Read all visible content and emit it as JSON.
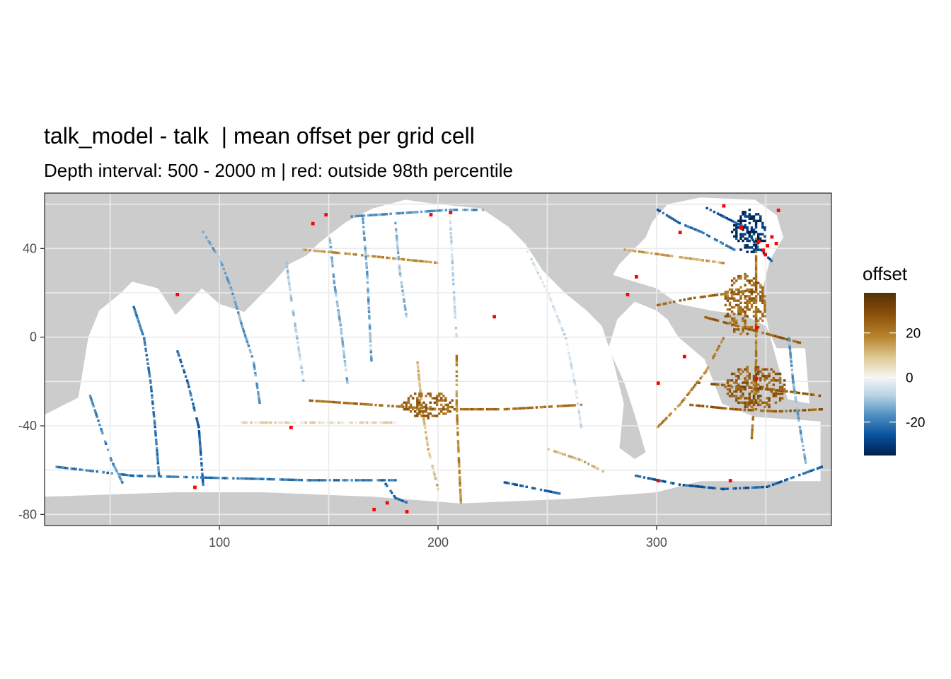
{
  "title": "talk_model - talk  | mean offset per grid cell",
  "subtitle": "Depth interval: 500 - 2000 m | red: outside 98th percentile",
  "chart_data": {
    "type": "heatmap",
    "xlim": [
      20,
      380
    ],
    "ylim": [
      -85,
      65
    ],
    "x_ticks": [
      {
        "value": 100,
        "label": "100"
      },
      {
        "value": 200,
        "label": "200"
      },
      {
        "value": 300,
        "label": "300"
      }
    ],
    "y_ticks": [
      {
        "value": 40,
        "label": "40"
      },
      {
        "value": 0,
        "label": "0"
      },
      {
        "value": -40,
        "label": "-40"
      },
      {
        "value": -80,
        "label": "-80"
      }
    ],
    "legend": {
      "title": "offset",
      "placement": "right",
      "range": [
        -35,
        38
      ],
      "ticks": [
        {
          "value": 20,
          "label": "20"
        },
        {
          "value": 0,
          "label": "0"
        },
        {
          "value": -20,
          "label": "-20"
        }
      ],
      "colors": [
        "#00204d",
        "#08519c",
        "#4f8fbf",
        "#b8d3e6",
        "#f5f5f5",
        "#e2cfa0",
        "#b8862f",
        "#8c510a",
        "#543005"
      ]
    },
    "land_color": "#cccccc",
    "ocean_color": "#ffffff",
    "outlier_color": "#ff0000",
    "tracks": [
      {
        "pts": [
          [
            92,
            48
          ],
          [
            100,
            35
          ],
          [
            105,
            22
          ],
          [
            110,
            5
          ],
          [
            115,
            -10
          ],
          [
            118,
            -30
          ]
        ],
        "value": -14
      },
      {
        "pts": [
          [
            60,
            15
          ],
          [
            65,
            0
          ],
          [
            68,
            -20
          ],
          [
            70,
            -40
          ],
          [
            72,
            -64
          ]
        ],
        "value": -20
      },
      {
        "pts": [
          [
            80,
            -5
          ],
          [
            85,
            -20
          ],
          [
            90,
            -40
          ],
          [
            92,
            -66
          ]
        ],
        "value": -22
      },
      {
        "pts": [
          [
            40,
            -25
          ],
          [
            45,
            -40
          ],
          [
            50,
            -55
          ],
          [
            55,
            -65
          ]
        ],
        "value": -18
      },
      {
        "pts": [
          [
            130,
            35
          ],
          [
            132,
            20
          ],
          [
            135,
            0
          ],
          [
            138,
            -20
          ]
        ],
        "value": -8
      },
      {
        "pts": [
          [
            150,
            45
          ],
          [
            152,
            25
          ],
          [
            155,
            5
          ],
          [
            158,
            -20
          ]
        ],
        "value": -12
      },
      {
        "pts": [
          [
            165,
            55
          ],
          [
            167,
            30
          ],
          [
            168,
            10
          ],
          [
            169,
            -10
          ]
        ],
        "value": -14
      },
      {
        "pts": [
          [
            180,
            52
          ],
          [
            182,
            30
          ],
          [
            185,
            10
          ]
        ],
        "value": -10
      },
      {
        "pts": [
          [
            205,
            55
          ],
          [
            206,
            35
          ],
          [
            207,
            15
          ],
          [
            208,
            0
          ]
        ],
        "value": -6
      },
      {
        "pts": [
          [
            190,
            -10
          ],
          [
            192,
            -30
          ],
          [
            195,
            -50
          ],
          [
            200,
            -70
          ]
        ],
        "value": 10
      },
      {
        "pts": [
          [
            208,
            -5
          ],
          [
            208,
            -30
          ],
          [
            209,
            -55
          ],
          [
            210,
            -75
          ]
        ],
        "value": 18
      },
      {
        "pts": [
          [
            140,
            -28
          ],
          [
            170,
            -30
          ],
          [
            200,
            -32
          ],
          [
            230,
            -32
          ],
          [
            265,
            -30
          ]
        ],
        "value": 22
      },
      {
        "pts": [
          [
            110,
            -38
          ],
          [
            150,
            -38
          ],
          [
            180,
            -38
          ]
        ],
        "value": 5
      },
      {
        "pts": [
          [
            175,
            -65
          ],
          [
            180,
            -72
          ],
          [
            185,
            -74
          ]
        ],
        "value": -22
      },
      {
        "pts": [
          [
            230,
            -65
          ],
          [
            240,
            -67
          ],
          [
            255,
            -70
          ]
        ],
        "value": -24
      },
      {
        "pts": [
          [
            290,
            -62
          ],
          [
            310,
            -66
          ],
          [
            330,
            -68
          ],
          [
            350,
            -67
          ],
          [
            375,
            -58
          ]
        ],
        "value": -24
      },
      {
        "pts": [
          [
            25,
            -58
          ],
          [
            60,
            -62
          ],
          [
            100,
            -63
          ],
          [
            140,
            -64
          ],
          [
            180,
            -64
          ]
        ],
        "value": -20
      },
      {
        "pts": [
          [
            240,
            40
          ],
          [
            250,
            20
          ],
          [
            258,
            0
          ],
          [
            262,
            -20
          ],
          [
            265,
            -40
          ]
        ],
        "value": -4
      },
      {
        "pts": [
          [
            138,
            40
          ],
          [
            160,
            38
          ],
          [
            180,
            36
          ],
          [
            200,
            34
          ]
        ],
        "value": 16
      },
      {
        "pts": [
          [
            320,
            60
          ],
          [
            330,
            55
          ],
          [
            340,
            50
          ],
          [
            345,
            42
          ],
          [
            352,
            35
          ]
        ],
        "value": -26
      },
      {
        "pts": [
          [
            300,
            58
          ],
          [
            310,
            52
          ],
          [
            320,
            48
          ],
          [
            335,
            40
          ]
        ],
        "value": -22
      },
      {
        "pts": [
          [
            345,
            45
          ],
          [
            345,
            30
          ],
          [
            345,
            10
          ],
          [
            345,
            -10
          ],
          [
            344,
            -30
          ],
          [
            343,
            -45
          ]
        ],
        "value": 20
      },
      {
        "pts": [
          [
            320,
            10
          ],
          [
            335,
            6
          ],
          [
            350,
            2
          ],
          [
            365,
            -2
          ]
        ],
        "value": 26
      },
      {
        "pts": [
          [
            318,
            -20
          ],
          [
            340,
            -22
          ],
          [
            360,
            -24
          ],
          [
            375,
            -26
          ]
        ],
        "value": 28
      },
      {
        "pts": [
          [
            315,
            -30
          ],
          [
            335,
            -32
          ],
          [
            355,
            -33
          ],
          [
            375,
            -32
          ]
        ],
        "value": 26
      },
      {
        "pts": [
          [
            360,
            0
          ],
          [
            362,
            -20
          ],
          [
            365,
            -40
          ],
          [
            368,
            -58
          ]
        ],
        "value": -14
      },
      {
        "pts": [
          [
            300,
            -40
          ],
          [
            310,
            -30
          ],
          [
            322,
            -15
          ],
          [
            330,
            0
          ]
        ],
        "value": 18
      },
      {
        "pts": [
          [
            300,
            15
          ],
          [
            315,
            18
          ],
          [
            330,
            20
          ],
          [
            345,
            22
          ]
        ],
        "value": 24
      },
      {
        "pts": [
          [
            285,
            40
          ],
          [
            300,
            38
          ],
          [
            315,
            36
          ],
          [
            330,
            34
          ]
        ],
        "value": 14
      },
      {
        "pts": [
          [
            160,
            55
          ],
          [
            175,
            56
          ],
          [
            190,
            57
          ],
          [
            205,
            58
          ],
          [
            220,
            58
          ]
        ],
        "value": -16
      },
      {
        "pts": [
          [
            250,
            -50
          ],
          [
            265,
            -55
          ],
          [
            275,
            -60
          ]
        ],
        "value": 10
      }
    ],
    "hotspots": [
      {
        "center": [
          342,
          48
        ],
        "radius": [
          8,
          10
        ],
        "value": -32
      },
      {
        "center": [
          340,
          15
        ],
        "radius": [
          10,
          14
        ],
        "value": 24
      },
      {
        "center": [
          345,
          -22
        ],
        "radius": [
          14,
          10
        ],
        "value": 26
      },
      {
        "center": [
          195,
          -30
        ],
        "radius": [
          12,
          6
        ],
        "value": 24
      }
    ],
    "outliers": [
      [
        348,
        40
      ],
      [
        350,
        42
      ],
      [
        346,
        44
      ],
      [
        352,
        46
      ],
      [
        349,
        38
      ],
      [
        354,
        43
      ],
      [
        355,
        58
      ],
      [
        330,
        60
      ],
      [
        310,
        48
      ],
      [
        142,
        52
      ],
      [
        148,
        56
      ],
      [
        196,
        56
      ],
      [
        205,
        57
      ],
      [
        88,
        -67
      ],
      [
        170,
        -77
      ],
      [
        176,
        -74
      ],
      [
        185,
        -78
      ],
      [
        333,
        -64
      ],
      [
        300,
        -20
      ],
      [
        312,
        -8
      ],
      [
        345,
        5
      ],
      [
        345,
        -18
      ],
      [
        286,
        20
      ],
      [
        290,
        28
      ],
      [
        80,
        20
      ],
      [
        132,
        -40
      ],
      [
        225,
        10
      ],
      [
        300,
        -64
      ],
      [
        338,
        50
      ]
    ]
  }
}
